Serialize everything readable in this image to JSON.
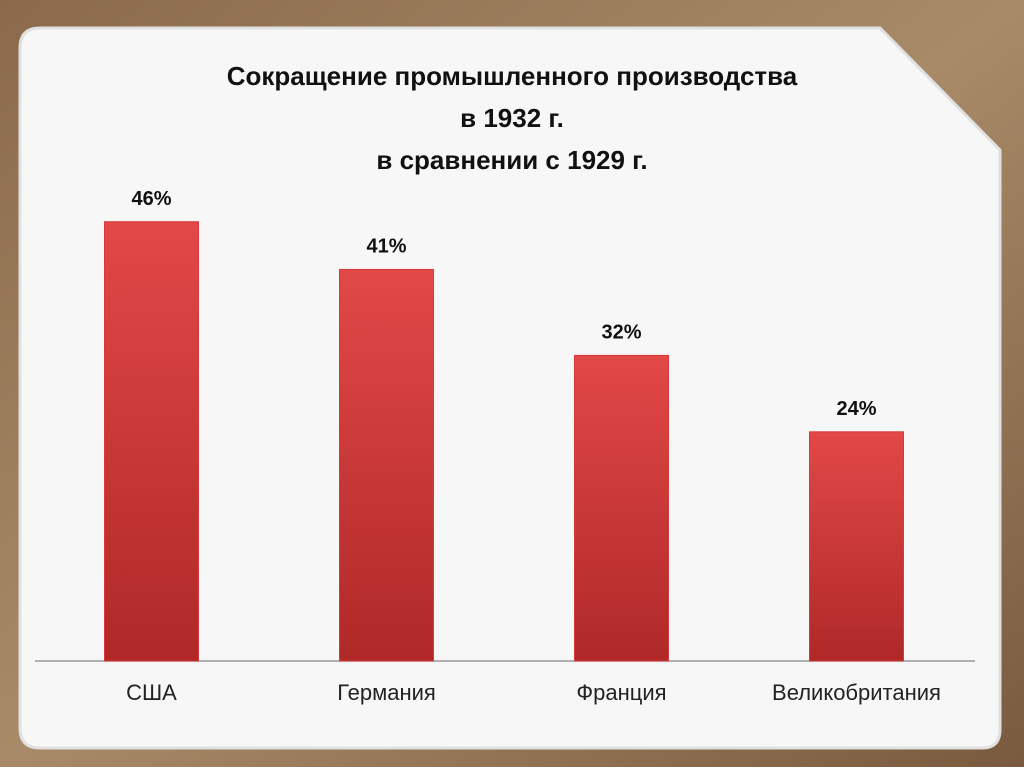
{
  "chart_data": {
    "type": "bar",
    "title": [
      "Сокращение промышленного производства",
      "в 1932 г.",
      "в сравнении с 1929 г."
    ],
    "categories": [
      "США",
      "Германия",
      "Франция",
      "Великобритания"
    ],
    "values": [
      46,
      41,
      32,
      24
    ],
    "value_labels": [
      "46%",
      "41%",
      "32%",
      "24%"
    ],
    "color": "#d83a3a"
  }
}
